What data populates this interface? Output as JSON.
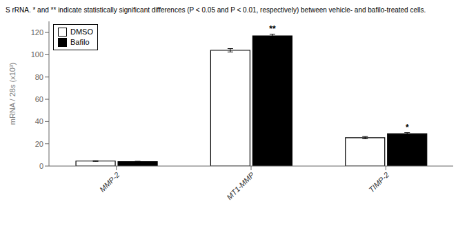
{
  "chart_data": {
    "type": "bar",
    "annotations": [
      "S rRNA. * and ** indicate statistically significant differences (P < 0.05 and P < 0.01, respectively) between vehicle- and bafilo-treated cells."
    ],
    "categories": [
      "MMP-2",
      "MT1-MMP",
      "TIMP-2"
    ],
    "series": [
      {
        "name": "DMSO",
        "color": "white",
        "values": [
          4.5,
          104,
          25.5
        ],
        "errors": [
          0.3,
          1.5,
          1.0
        ]
      },
      {
        "name": "Bafilo",
        "color": "black",
        "values": [
          4.0,
          117,
          29.0
        ],
        "errors": [
          0.3,
          1.5,
          1.0
        ],
        "significance": [
          null,
          "**",
          "*"
        ]
      }
    ],
    "ylabel": "mRNA / 28s (x10³)",
    "ylim": [
      0,
      130
    ],
    "yticks": [
      0,
      20,
      40,
      60,
      80,
      100,
      120
    ],
    "legend": "upper left"
  }
}
